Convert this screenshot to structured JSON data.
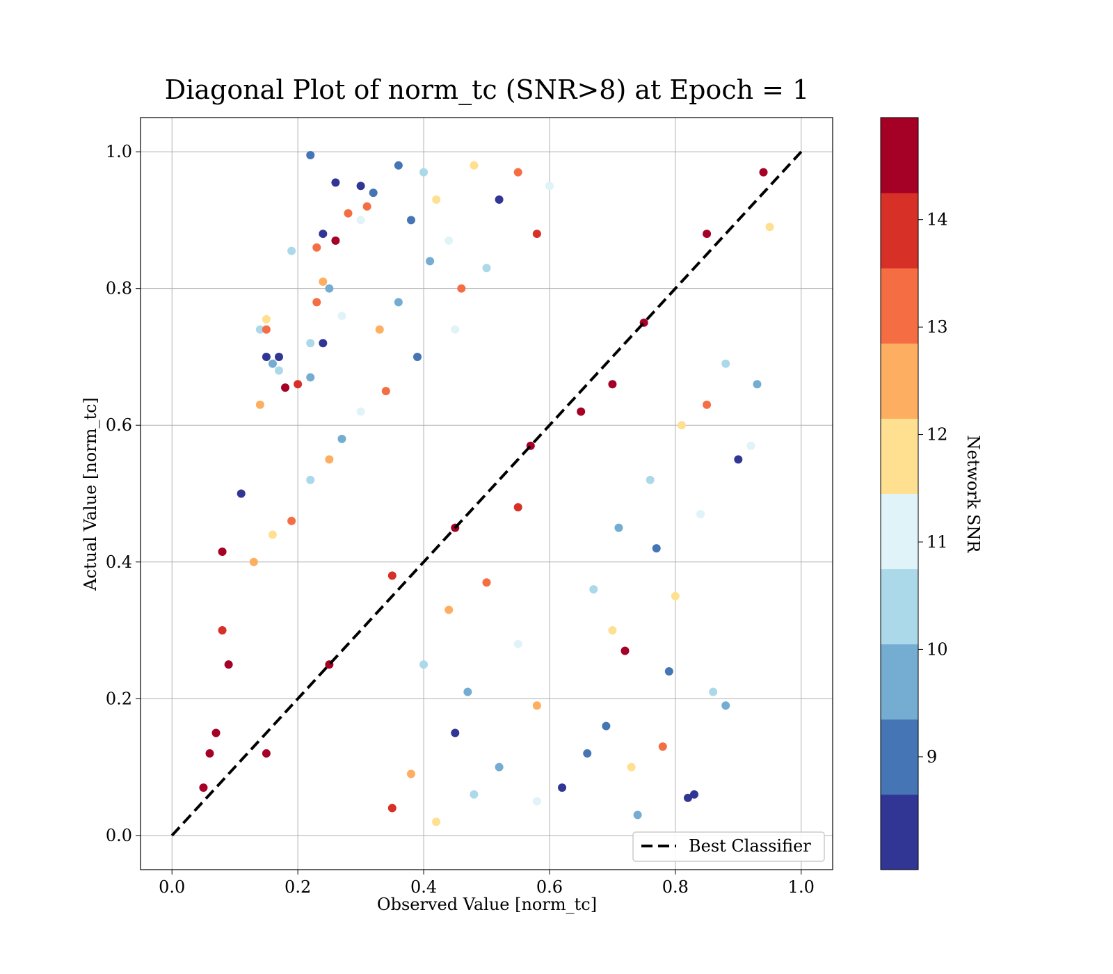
{
  "chart_data": {
    "type": "scatter",
    "title": "Diagonal Plot of norm_tc (SNR>8) at Epoch = 1",
    "xlabel": "Observed Value [norm_tc]",
    "ylabel": "Actual Value [norm_tc]",
    "xlim": [
      -0.05,
      1.05
    ],
    "ylim": [
      -0.05,
      1.05
    ],
    "x_ticks": [
      "0.0",
      "0.2",
      "0.4",
      "0.6",
      "0.8",
      "1.0"
    ],
    "y_ticks": [
      "0.0",
      "0.2",
      "0.4",
      "0.6",
      "0.8",
      "1.0"
    ],
    "grid": true,
    "legend": {
      "position": "lower-right",
      "entries": [
        {
          "label": "Best Classifier",
          "style": "dashed",
          "color": "#000000"
        }
      ]
    },
    "reference_line": {
      "label": "Best Classifier",
      "x": [
        0.0,
        1.0
      ],
      "y": [
        0.0,
        1.0
      ]
    },
    "colorbar": {
      "label": "Network SNR",
      "range": [
        8.0,
        15.0
      ],
      "ticks": [
        "9",
        "10",
        "11",
        "12",
        "13",
        "14"
      ],
      "bins": [
        "#313695",
        "#4575b4",
        "#74add1",
        "#abd9e9",
        "#e0f3f8",
        "#fee090",
        "#fdae61",
        "#f46d43",
        "#d73027",
        "#a50026"
      ]
    },
    "series": [
      {
        "marker": "circle",
        "color_by": "Network SNR",
        "points": [
          [
            0.22,
            0.995,
            9.2
          ],
          [
            0.26,
            0.955,
            8.6
          ],
          [
            0.3,
            0.95,
            8.4
          ],
          [
            0.32,
            0.94,
            9.0
          ],
          [
            0.31,
            0.92,
            13.1
          ],
          [
            0.28,
            0.91,
            13.4
          ],
          [
            0.3,
            0.9,
            11.0
          ],
          [
            0.24,
            0.88,
            8.7
          ],
          [
            0.26,
            0.87,
            14.8
          ],
          [
            0.23,
            0.86,
            13.2
          ],
          [
            0.19,
            0.855,
            10.3
          ],
          [
            0.24,
            0.81,
            12.5
          ],
          [
            0.25,
            0.8,
            9.6
          ],
          [
            0.23,
            0.78,
            13.0
          ],
          [
            0.27,
            0.76,
            10.8
          ],
          [
            0.15,
            0.755,
            11.6
          ],
          [
            0.14,
            0.74,
            10.4
          ],
          [
            0.15,
            0.74,
            13.6
          ],
          [
            0.24,
            0.72,
            8.4
          ],
          [
            0.22,
            0.72,
            10.6
          ],
          [
            0.17,
            0.7,
            8.6
          ],
          [
            0.15,
            0.7,
            8.5
          ],
          [
            0.16,
            0.69,
            9.5
          ],
          [
            0.17,
            0.68,
            10.2
          ],
          [
            0.22,
            0.67,
            9.6
          ],
          [
            0.2,
            0.66,
            14.0
          ],
          [
            0.18,
            0.655,
            14.5
          ],
          [
            0.14,
            0.63,
            12.3
          ],
          [
            0.08,
            0.415,
            14.8
          ],
          [
            0.11,
            0.5,
            8.3
          ],
          [
            0.09,
            0.25,
            14.5
          ],
          [
            0.08,
            0.3,
            13.9
          ],
          [
            0.07,
            0.15,
            14.7
          ],
          [
            0.06,
            0.12,
            14.3
          ],
          [
            0.05,
            0.07,
            14.8
          ],
          [
            0.83,
            0.06,
            8.4
          ],
          [
            0.82,
            0.055,
            8.3
          ],
          [
            0.86,
            0.21,
            10.3
          ],
          [
            0.88,
            0.19,
            9.9
          ],
          [
            0.84,
            0.47,
            11.3
          ],
          [
            0.92,
            0.57,
            11.2
          ],
          [
            0.9,
            0.55,
            8.6
          ],
          [
            0.93,
            0.66,
            10.1
          ],
          [
            0.94,
            0.97,
            14.8
          ],
          [
            0.95,
            0.89,
            12.0
          ],
          [
            0.72,
            0.27,
            14.3
          ],
          [
            0.73,
            0.1,
            11.7
          ],
          [
            0.74,
            0.03,
            9.4
          ],
          [
            0.79,
            0.24,
            9.0
          ],
          [
            0.78,
            0.13,
            13.5
          ],
          [
            0.62,
            0.07,
            8.5
          ],
          [
            0.58,
            0.05,
            10.9
          ],
          [
            0.66,
            0.12,
            9.2
          ],
          [
            0.69,
            0.16,
            8.9
          ],
          [
            0.7,
            0.3,
            11.5
          ],
          [
            0.67,
            0.36,
            10.2
          ],
          [
            0.71,
            0.45,
            9.6
          ],
          [
            0.77,
            0.42,
            8.8
          ],
          [
            0.8,
            0.35,
            12.1
          ],
          [
            0.76,
            0.52,
            10.7
          ],
          [
            0.81,
            0.6,
            11.9
          ],
          [
            0.85,
            0.63,
            13.3
          ],
          [
            0.88,
            0.69,
            10.6
          ],
          [
            0.58,
            0.19,
            12.4
          ],
          [
            0.55,
            0.28,
            11.1
          ],
          [
            0.52,
            0.1,
            9.8
          ],
          [
            0.48,
            0.06,
            10.4
          ],
          [
            0.45,
            0.15,
            8.7
          ],
          [
            0.42,
            0.02,
            11.8
          ],
          [
            0.38,
            0.09,
            12.8
          ],
          [
            0.35,
            0.04,
            13.7
          ],
          [
            0.4,
            0.25,
            10.5
          ],
          [
            0.44,
            0.33,
            12.6
          ],
          [
            0.47,
            0.21,
            9.4
          ],
          [
            0.5,
            0.37,
            13.5
          ],
          [
            0.36,
            0.98,
            9.1
          ],
          [
            0.4,
            0.97,
            10.6
          ],
          [
            0.42,
            0.93,
            12.2
          ],
          [
            0.38,
            0.9,
            8.9
          ],
          [
            0.44,
            0.87,
            11.3
          ],
          [
            0.41,
            0.84,
            9.7
          ],
          [
            0.46,
            0.8,
            13.1
          ],
          [
            0.36,
            0.78,
            10.1
          ],
          [
            0.33,
            0.74,
            12.7
          ],
          [
            0.39,
            0.7,
            9.3
          ],
          [
            0.45,
            0.74,
            11.4
          ],
          [
            0.5,
            0.83,
            10.2
          ],
          [
            0.52,
            0.93,
            8.6
          ],
          [
            0.55,
            0.97,
            12.9
          ],
          [
            0.48,
            0.98,
            11.6
          ],
          [
            0.58,
            0.88,
            13.8
          ],
          [
            0.6,
            0.95,
            10.8
          ],
          [
            0.34,
            0.65,
            13.2
          ],
          [
            0.3,
            0.62,
            11.0
          ],
          [
            0.27,
            0.58,
            9.5
          ],
          [
            0.25,
            0.55,
            12.4
          ],
          [
            0.22,
            0.52,
            10.3
          ],
          [
            0.19,
            0.46,
            13.0
          ],
          [
            0.16,
            0.44,
            11.7
          ],
          [
            0.13,
            0.4,
            12.8
          ],
          [
            0.57,
            0.57,
            14.6
          ],
          [
            0.45,
            0.45,
            14.9
          ],
          [
            0.35,
            0.38,
            14.2
          ],
          [
            0.65,
            0.62,
            14.7
          ],
          [
            0.75,
            0.75,
            14.4
          ],
          [
            0.85,
            0.88,
            14.9
          ],
          [
            0.15,
            0.12,
            14.5
          ],
          [
            0.25,
            0.25,
            14.3
          ],
          [
            0.55,
            0.48,
            13.9
          ],
          [
            0.7,
            0.66,
            14.8
          ]
        ]
      }
    ]
  }
}
